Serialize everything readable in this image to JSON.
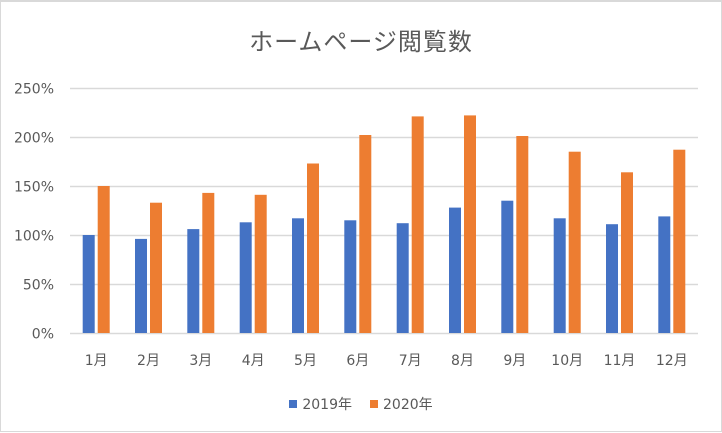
{
  "chart_data": {
    "type": "bar",
    "title": "ホームページ閲覧数",
    "xlabel": "",
    "ylabel": "",
    "categories": [
      "1月",
      "2月",
      "3月",
      "4月",
      "5月",
      "6月",
      "7月",
      "8月",
      "9月",
      "10月",
      "11月",
      "12月"
    ],
    "series": [
      {
        "name": "2019年",
        "color": "#4472c4",
        "values": [
          100,
          96,
          106,
          113,
          117,
          115,
          112,
          128,
          135,
          117,
          111,
          119
        ]
      },
      {
        "name": "2020年",
        "color": "#ed7d31",
        "values": [
          150,
          133,
          143,
          141,
          173,
          202,
          221,
          222,
          201,
          185,
          164,
          187
        ]
      }
    ],
    "ylim": [
      0,
      250
    ],
    "yticks": [
      0,
      50,
      100,
      150,
      200,
      250
    ],
    "ytick_labels": [
      "0%",
      "50%",
      "100%",
      "150%",
      "200%",
      "250%"
    ],
    "grid": true,
    "legend_position": "bottom"
  }
}
